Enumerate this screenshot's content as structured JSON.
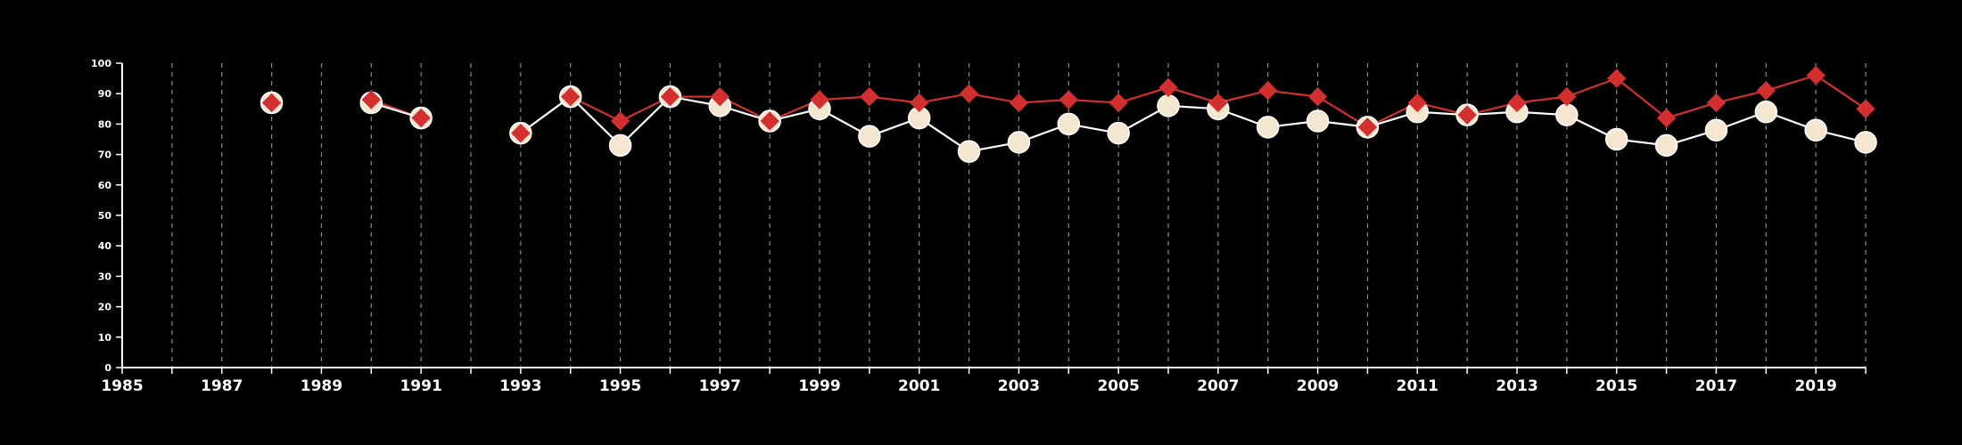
{
  "chart_data": {
    "type": "line",
    "x_range": [
      1985,
      2020
    ],
    "ylim": [
      0,
      100
    ],
    "y_ticks": [
      "0",
      "10",
      "20",
      "30",
      "40",
      "50",
      "60",
      "70",
      "80",
      "90",
      "100"
    ],
    "x_tick_labels": [
      "1985",
      "1987",
      "1989",
      "1991",
      "1993",
      "1995",
      "1997",
      "1999",
      "2001",
      "2003",
      "2005",
      "2007",
      "2009",
      "2011",
      "2013",
      "2015",
      "2017",
      "2019"
    ],
    "grid": "vertical dashed, one per year",
    "legend": "none",
    "series": [
      {
        "marker": "circle",
        "color": "#f5e6d0",
        "line_color": "#ffffff",
        "points": [
          {
            "x": 1988,
            "y": 87
          },
          {
            "x": 1990,
            "y": 87
          },
          {
            "x": 1991,
            "y": 82
          },
          {
            "x": 1993,
            "y": 77
          },
          {
            "x": 1994,
            "y": 89
          },
          {
            "x": 1995,
            "y": 73
          },
          {
            "x": 1996,
            "y": 89
          },
          {
            "x": 1997,
            "y": 86
          },
          {
            "x": 1998,
            "y": 81
          },
          {
            "x": 1999,
            "y": 85
          },
          {
            "x": 2000,
            "y": 76
          },
          {
            "x": 2001,
            "y": 82
          },
          {
            "x": 2002,
            "y": 71
          },
          {
            "x": 2003,
            "y": 74
          },
          {
            "x": 2004,
            "y": 80
          },
          {
            "x": 2005,
            "y": 77
          },
          {
            "x": 2006,
            "y": 86
          },
          {
            "x": 2007,
            "y": 85
          },
          {
            "x": 2008,
            "y": 79
          },
          {
            "x": 2009,
            "y": 81
          },
          {
            "x": 2010,
            "y": 79
          },
          {
            "x": 2011,
            "y": 84
          },
          {
            "x": 2012,
            "y": 83
          },
          {
            "x": 2013,
            "y": 84
          },
          {
            "x": 2014,
            "y": 83
          },
          {
            "x": 2015,
            "y": 75
          },
          {
            "x": 2016,
            "y": 73
          },
          {
            "x": 2017,
            "y": 78
          },
          {
            "x": 2018,
            "y": 84
          },
          {
            "x": 2019,
            "y": 78
          },
          {
            "x": 2020,
            "y": 74
          }
        ]
      },
      {
        "marker": "diamond",
        "color": "#d32f2f",
        "line_color": "#d32f2f",
        "points": [
          {
            "x": 1988,
            "y": 87
          },
          {
            "x": 1990,
            "y": 88
          },
          {
            "x": 1991,
            "y": 82
          },
          {
            "x": 1993,
            "y": 77
          },
          {
            "x": 1994,
            "y": 89
          },
          {
            "x": 1995,
            "y": 81
          },
          {
            "x": 1996,
            "y": 89
          },
          {
            "x": 1997,
            "y": 89
          },
          {
            "x": 1998,
            "y": 81
          },
          {
            "x": 1999,
            "y": 88
          },
          {
            "x": 2000,
            "y": 89
          },
          {
            "x": 2001,
            "y": 87
          },
          {
            "x": 2002,
            "y": 90
          },
          {
            "x": 2003,
            "y": 87
          },
          {
            "x": 2004,
            "y": 88
          },
          {
            "x": 2005,
            "y": 87
          },
          {
            "x": 2006,
            "y": 92
          },
          {
            "x": 2007,
            "y": 87
          },
          {
            "x": 2008,
            "y": 91
          },
          {
            "x": 2009,
            "y": 89
          },
          {
            "x": 2010,
            "y": 79
          },
          {
            "x": 2011,
            "y": 87
          },
          {
            "x": 2012,
            "y": 83
          },
          {
            "x": 2013,
            "y": 87
          },
          {
            "x": 2014,
            "y": 89
          },
          {
            "x": 2015,
            "y": 95
          },
          {
            "x": 2016,
            "y": 82
          },
          {
            "x": 2017,
            "y": 87
          },
          {
            "x": 2018,
            "y": 91
          },
          {
            "x": 2019,
            "y": 96
          },
          {
            "x": 2020,
            "y": 85
          }
        ]
      }
    ]
  }
}
